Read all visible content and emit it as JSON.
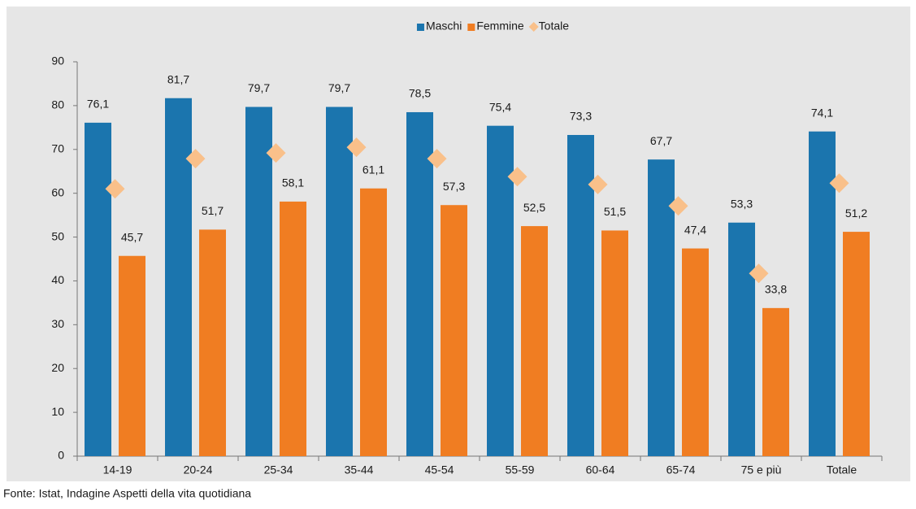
{
  "chart_data": {
    "type": "bar",
    "categories": [
      "14-19",
      "20-24",
      "25-34",
      "35-44",
      "45-54",
      "55-59",
      "60-64",
      "65-74",
      "75 e più",
      "Totale"
    ],
    "series": [
      {
        "name": "Maschi",
        "color": "#1b75ae",
        "values": [
          76.1,
          81.7,
          79.7,
          79.7,
          78.5,
          75.4,
          73.3,
          67.7,
          53.3,
          74.1
        ],
        "value_labels": [
          "76,1",
          "81,7",
          "79,7",
          "79,7",
          "78,5",
          "75,4",
          "73,3",
          "67,7",
          "53,3",
          "74,1"
        ]
      },
      {
        "name": "Femmine",
        "color": "#f07d22",
        "values": [
          45.7,
          51.7,
          58.1,
          61.1,
          57.3,
          52.5,
          51.5,
          47.4,
          33.8,
          51.2
        ],
        "value_labels": [
          "45,7",
          "51,7",
          "58,1",
          "61,1",
          "57,3",
          "52,5",
          "51,5",
          "47,4",
          "33,8",
          "51,2"
        ]
      },
      {
        "name": "Totale",
        "color": "#f9c08a",
        "marker": "diamond",
        "values": [
          61.0,
          67.9,
          69.2,
          70.5,
          67.9,
          63.8,
          62.0,
          57.1,
          41.7,
          62.3
        ]
      }
    ],
    "ylim": [
      0,
      90
    ],
    "yticks": [
      0,
      10,
      20,
      30,
      40,
      50,
      60,
      70,
      80,
      90
    ],
    "grid": false,
    "legend": "top",
    "source": "Fonte: Istat, Indagine Aspetti della vita quotidiana"
  }
}
